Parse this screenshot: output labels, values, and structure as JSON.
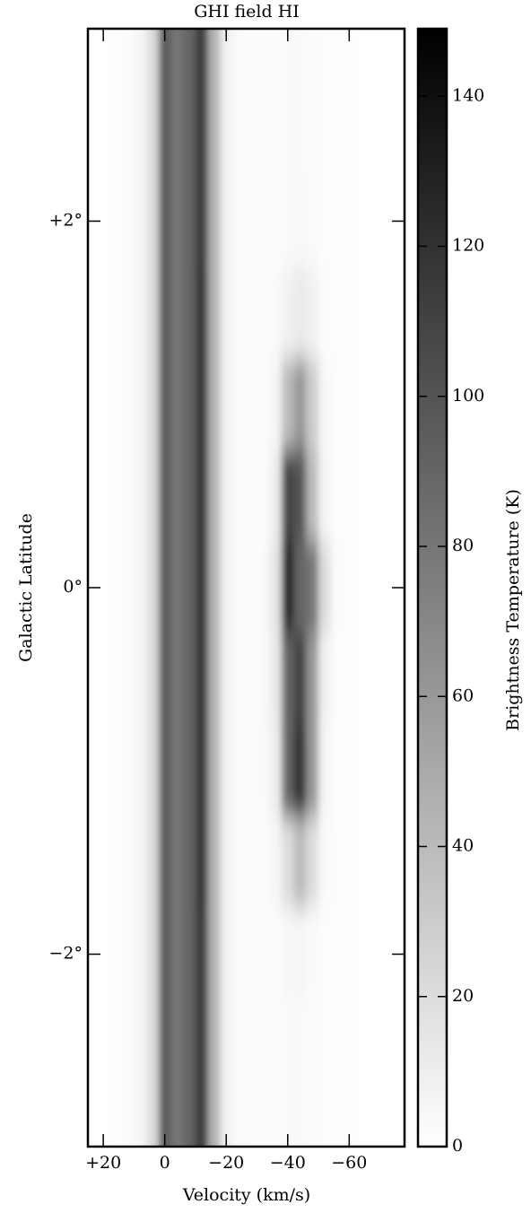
{
  "chart_data": {
    "type": "heatmap",
    "title": "GHI field HI",
    "x_label": "Velocity (km/s)",
    "y_label": "Galactic Latitude",
    "colorbar_label": "Brightness Temperature (K)",
    "xlim": [
      25,
      -78
    ],
    "ylim": [
      -3.05,
      3.05
    ],
    "xticks": [
      {
        "value": 20,
        "label": "+20"
      },
      0,
      {
        "value": -20,
        "label": "−20"
      },
      {
        "value": -40,
        "label": "−40"
      },
      {
        "value": -60,
        "label": "−60"
      }
    ],
    "yticks": [
      {
        "value": 2,
        "label": "+2°"
      },
      {
        "value": 0,
        "label": "0°"
      },
      {
        "value": -2,
        "label": "−2°"
      }
    ],
    "clim": [
      0,
      149
    ],
    "cticks": [
      0,
      20,
      40,
      60,
      80,
      100,
      120,
      140
    ],
    "x": [
      24,
      20,
      16,
      12,
      8,
      4,
      0,
      -4,
      -8,
      -12,
      -16,
      -20,
      -24,
      -28,
      -32,
      -36,
      -40,
      -44,
      -48,
      -52,
      -56,
      -60,
      -64,
      -68,
      -72,
      -76
    ],
    "y": [
      3,
      2.5,
      2,
      1.5,
      1,
      0.5,
      0,
      -0.5,
      -1,
      -1.5,
      -2,
      -2.5,
      -3
    ],
    "z": [
      [
        0,
        0,
        1,
        2,
        5,
        20,
        95,
        80,
        90,
        115,
        45,
        8,
        3,
        2,
        2,
        2,
        3,
        3,
        2,
        1,
        1,
        1,
        0,
        0,
        0,
        0
      ],
      [
        0,
        0,
        1,
        2,
        5,
        20,
        95,
        80,
        90,
        115,
        45,
        8,
        3,
        2,
        2,
        2,
        3,
        3,
        2,
        1,
        1,
        1,
        0,
        0,
        0,
        0
      ],
      [
        0,
        0,
        1,
        2,
        5,
        20,
        95,
        80,
        90,
        115,
        45,
        8,
        3,
        2,
        2,
        2,
        3,
        4,
        3,
        1,
        1,
        1,
        0,
        0,
        0,
        0
      ],
      [
        0,
        0,
        1,
        2,
        5,
        20,
        95,
        80,
        90,
        118,
        45,
        8,
        3,
        2,
        2,
        3,
        8,
        12,
        8,
        2,
        1,
        1,
        0,
        0,
        0,
        0
      ],
      [
        0,
        0,
        1,
        2,
        5,
        20,
        95,
        80,
        90,
        118,
        45,
        8,
        3,
        2,
        2,
        6,
        40,
        60,
        30,
        4,
        1,
        1,
        0,
        0,
        0,
        0
      ],
      [
        0,
        0,
        1,
        2,
        5,
        20,
        95,
        80,
        90,
        118,
        45,
        8,
        3,
        2,
        2,
        10,
        110,
        100,
        40,
        6,
        1,
        1,
        0,
        0,
        0,
        0
      ],
      [
        0,
        0,
        1,
        2,
        5,
        20,
        95,
        80,
        90,
        118,
        45,
        8,
        3,
        2,
        3,
        14,
        130,
        90,
        80,
        20,
        2,
        1,
        0,
        0,
        0,
        0
      ],
      [
        0,
        0,
        1,
        2,
        5,
        20,
        95,
        80,
        90,
        118,
        45,
        8,
        3,
        2,
        3,
        12,
        90,
        110,
        60,
        8,
        1,
        1,
        0,
        0,
        0,
        0
      ],
      [
        0,
        0,
        1,
        2,
        5,
        20,
        95,
        80,
        90,
        118,
        45,
        8,
        3,
        2,
        3,
        10,
        90,
        120,
        60,
        6,
        1,
        1,
        0,
        0,
        0,
        0
      ],
      [
        0,
        0,
        1,
        2,
        5,
        20,
        95,
        80,
        90,
        118,
        45,
        8,
        3,
        2,
        2,
        5,
        20,
        40,
        20,
        3,
        1,
        1,
        0,
        0,
        0,
        0
      ],
      [
        0,
        0,
        1,
        2,
        5,
        20,
        95,
        80,
        90,
        115,
        45,
        8,
        3,
        2,
        2,
        2,
        4,
        5,
        3,
        1,
        1,
        1,
        0,
        0,
        0,
        0
      ],
      [
        0,
        0,
        1,
        2,
        5,
        20,
        95,
        80,
        90,
        115,
        45,
        8,
        3,
        2,
        2,
        2,
        3,
        3,
        2,
        1,
        1,
        1,
        0,
        0,
        0,
        0
      ],
      [
        0,
        0,
        1,
        2,
        5,
        20,
        95,
        80,
        90,
        115,
        45,
        8,
        3,
        2,
        2,
        2,
        3,
        3,
        2,
        1,
        1,
        1,
        0,
        0,
        0,
        0
      ]
    ]
  }
}
